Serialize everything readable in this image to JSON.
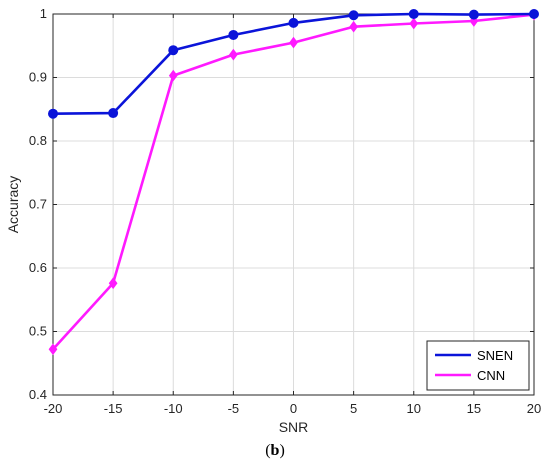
{
  "chart_data": {
    "type": "line",
    "xlabel": "SNR",
    "ylabel": "Accuracy",
    "xlim": [
      -20,
      20
    ],
    "ylim": [
      0.4,
      1.0
    ],
    "xticks": [
      "-20",
      "-15",
      "-10",
      "-5",
      "0",
      "5",
      "10",
      "15",
      "20"
    ],
    "yticks": [
      "0.4",
      "0.5",
      "0.6",
      "0.7",
      "0.8",
      "0.9",
      "1"
    ],
    "grid": true,
    "legend_position": "bottom-right",
    "x": [
      -20,
      -15,
      -10,
      -5,
      0,
      5,
      10,
      15,
      20
    ],
    "series": [
      {
        "name": "SNEN",
        "color": "#0b14d9",
        "marker": "circle",
        "values": [
          0.843,
          0.844,
          0.943,
          0.967,
          0.986,
          0.998,
          1.0,
          0.999,
          1.0
        ]
      },
      {
        "name": "CNN",
        "color": "#ff1aff",
        "marker": "diamond",
        "values": [
          0.472,
          0.576,
          0.903,
          0.936,
          0.955,
          0.98,
          0.985,
          0.989,
          0.999
        ]
      }
    ]
  },
  "caption": {
    "open": "(",
    "label": "b",
    "close": ")"
  }
}
